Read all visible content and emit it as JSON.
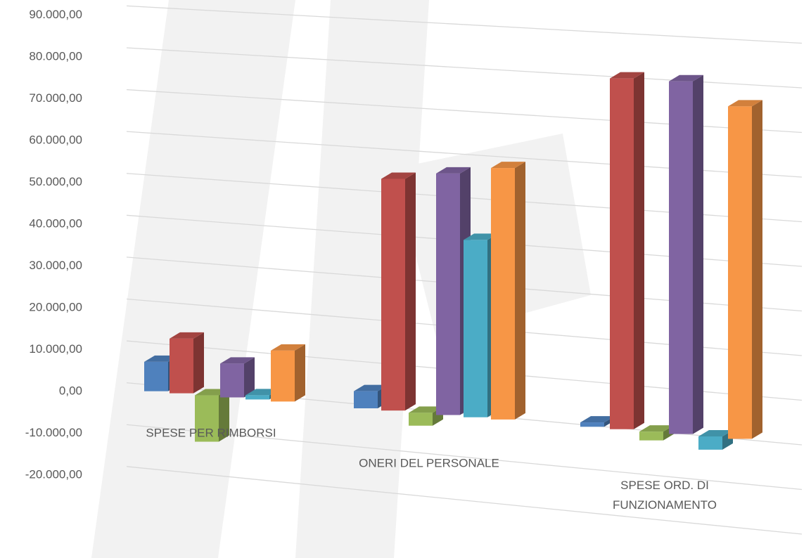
{
  "chart_data": {
    "type": "bar3d",
    "categories": [
      "SPESE PER RIMBORSI",
      "ONERI DEL PERSONALE",
      "SPESE ORD. DI FUNZIONAMENTO"
    ],
    "series": [
      {
        "color": "#4f81bd",
        "values": [
          7000,
          4000,
          1000
        ]
      },
      {
        "color": "#c0504d",
        "values": [
          13000,
          54000,
          80000
        ]
      },
      {
        "color": "#9bbb59",
        "values": [
          -11000,
          -3000,
          -2000
        ]
      },
      {
        "color": "#8064a2",
        "values": [
          8000,
          56000,
          80000
        ]
      },
      {
        "color": "#4bacc6",
        "values": [
          1000,
          41000,
          -3000
        ]
      },
      {
        "color": "#f79646",
        "values": [
          12000,
          58000,
          75000
        ]
      }
    ],
    "ylim": [
      -20000,
      90000
    ],
    "yticks": [
      {
        "value": -20000,
        "label": "-20.000,00"
      },
      {
        "value": -10000,
        "label": "-10.000,00"
      },
      {
        "value": 0,
        "label": "0,00"
      },
      {
        "value": 10000,
        "label": "10.000,00"
      },
      {
        "value": 20000,
        "label": "20.000,00"
      },
      {
        "value": 30000,
        "label": "30.000,00"
      },
      {
        "value": 40000,
        "label": "40.000,00"
      },
      {
        "value": 50000,
        "label": "50.000,00"
      },
      {
        "value": 60000,
        "label": "60.000,00"
      },
      {
        "value": 70000,
        "label": "70.000,00"
      },
      {
        "value": 80000,
        "label": "80.000,00"
      },
      {
        "value": 90000,
        "label": "90.000,00"
      }
    ],
    "grid": true
  }
}
